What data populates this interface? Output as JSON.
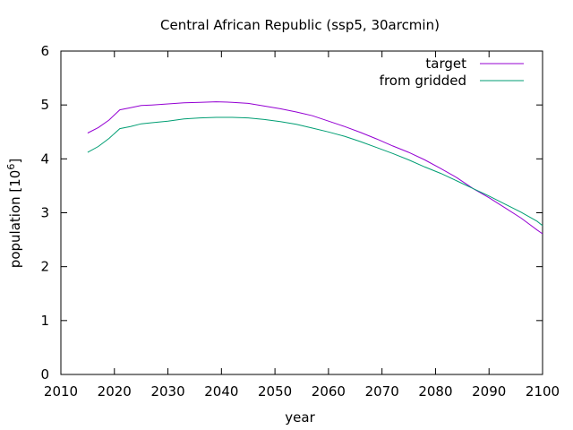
{
  "chart_data": {
    "type": "line",
    "title": "Central African Republic (ssp5, 30arcmin)",
    "xlabel": "year",
    "ylabel_base": "population [10",
    "ylabel_exp": "6",
    "ylabel_close": "]",
    "xlim": [
      2010,
      2100
    ],
    "ylim": [
      0,
      6
    ],
    "xticks": [
      2010,
      2020,
      2030,
      2040,
      2050,
      2060,
      2070,
      2080,
      2090,
      2100
    ],
    "yticks": [
      0,
      1,
      2,
      3,
      4,
      5,
      6
    ],
    "legend_position": "top-right",
    "grid": false,
    "series": [
      {
        "name": "target",
        "color": "#9400d3",
        "x": [
          2015,
          2017,
          2019,
          2021,
          2023,
          2025,
          2027,
          2030,
          2033,
          2036,
          2039,
          2042,
          2045,
          2048,
          2051,
          2054,
          2057,
          2060,
          2063,
          2066,
          2069,
          2072,
          2075,
          2078,
          2081,
          2084,
          2087,
          2090,
          2093,
          2096,
          2099,
          2100
        ],
        "values": [
          4.48,
          4.58,
          4.72,
          4.91,
          4.95,
          4.99,
          5.0,
          5.02,
          5.04,
          5.05,
          5.06,
          5.05,
          5.03,
          4.98,
          4.93,
          4.87,
          4.8,
          4.7,
          4.6,
          4.49,
          4.37,
          4.24,
          4.12,
          3.98,
          3.82,
          3.65,
          3.45,
          3.28,
          3.09,
          2.9,
          2.68,
          2.61
        ]
      },
      {
        "name": "from gridded",
        "color": "#009e73",
        "x": [
          2015,
          2017,
          2019,
          2021,
          2023,
          2025,
          2027,
          2030,
          2033,
          2036,
          2039,
          2042,
          2045,
          2048,
          2051,
          2054,
          2057,
          2060,
          2063,
          2066,
          2069,
          2072,
          2075,
          2078,
          2081,
          2084,
          2087,
          2090,
          2093,
          2096,
          2099,
          2100
        ],
        "values": [
          4.12,
          4.23,
          4.38,
          4.56,
          4.6,
          4.65,
          4.67,
          4.7,
          4.74,
          4.76,
          4.77,
          4.77,
          4.76,
          4.73,
          4.69,
          4.64,
          4.57,
          4.5,
          4.42,
          4.32,
          4.21,
          4.1,
          3.98,
          3.85,
          3.73,
          3.59,
          3.45,
          3.31,
          3.16,
          3.01,
          2.84,
          2.76
        ]
      }
    ]
  }
}
